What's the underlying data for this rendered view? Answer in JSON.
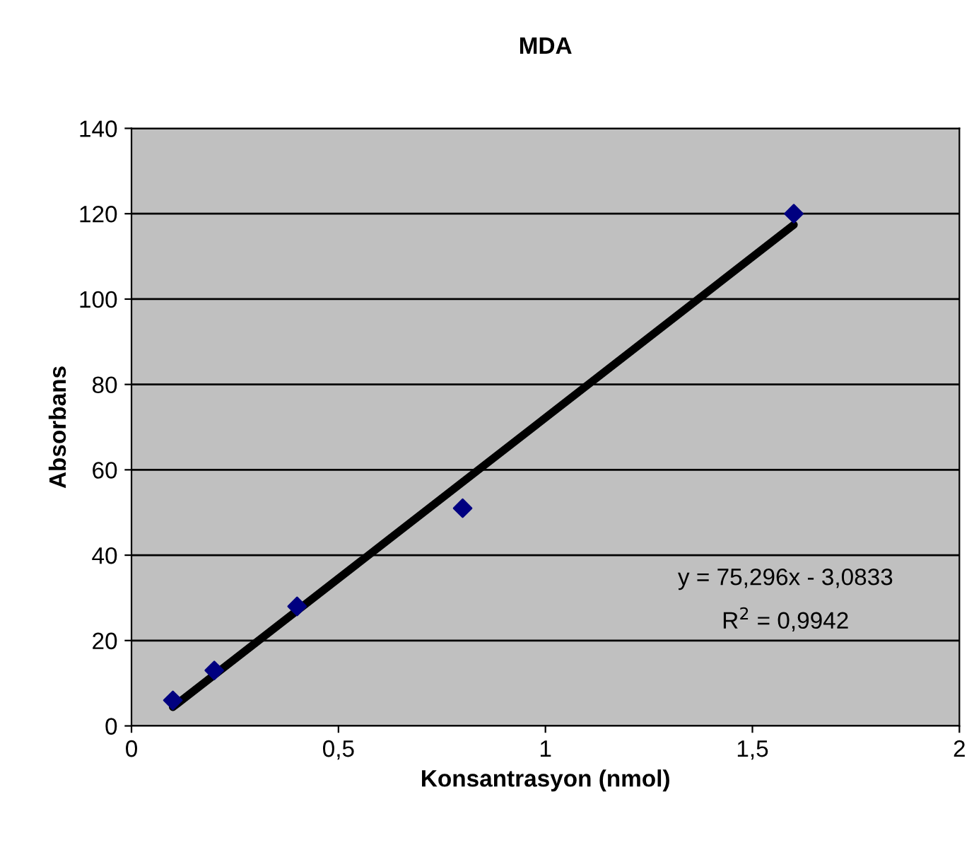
{
  "chart_data": {
    "type": "scatter",
    "title": "MDA",
    "xlabel": "Konsantrasyon (nmol)",
    "ylabel": "Absorbans",
    "series": [
      {
        "type": "scatter",
        "color": "#000080",
        "marker": "diamond",
        "x": [
          0.1,
          0.2,
          0.4,
          0.8,
          1.6
        ],
        "values": [
          6,
          13,
          28,
          51,
          120
        ]
      },
      {
        "type": "line",
        "color": "#000000",
        "marker": "none",
        "line_style": "solid",
        "x": [
          0.1,
          1.6
        ],
        "values": [
          4.4,
          117.4
        ]
      }
    ],
    "annotations": [
      "y = 75,296x - 3,0833",
      "R$^{2}$ = 0,9942"
    ],
    "xlim": [
      0,
      2
    ],
    "xticks": [
      0,
      {
        "value": 0.5,
        "label": "0,5"
      },
      1,
      {
        "value": 1.5,
        "label": "1,5"
      },
      2
    ],
    "ylim": [
      0,
      140
    ],
    "yticks": [
      0,
      20,
      40,
      60,
      80,
      100,
      120,
      140
    ],
    "grid": "y"
  }
}
